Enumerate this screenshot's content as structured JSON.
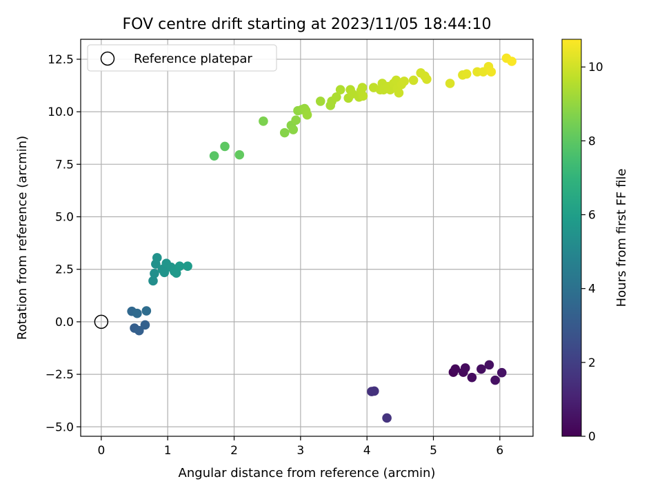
{
  "chart_data": {
    "type": "scatter",
    "title": "FOV centre drift starting at 2023/11/05 18:44:10",
    "xlabel": "Angular distance from reference (arcmin)",
    "ylabel": "Rotation from reference (arcmin)",
    "xlim": [
      -0.31,
      6.5
    ],
    "ylim": [
      -5.45,
      13.45
    ],
    "xticks": [
      0,
      1,
      2,
      3,
      4,
      5,
      6
    ],
    "xtick_labels": [
      "0",
      "1",
      "2",
      "3",
      "4",
      "5",
      "6"
    ],
    "yticks": [
      -5.0,
      -2.5,
      0.0,
      2.5,
      5.0,
      7.5,
      10.0,
      12.5
    ],
    "ytick_labels": [
      "−5.0",
      "−2.5",
      "0.0",
      "2.5",
      "5.0",
      "7.5",
      "10.0",
      "12.5"
    ],
    "grid": true,
    "legend": {
      "position": "upper-left",
      "entries": [
        {
          "label": "Reference platepar",
          "marker": "open-circle"
        }
      ]
    },
    "reference": {
      "x": 0,
      "y": 0
    },
    "colorbar": {
      "label": "Hours from first FF file",
      "min": 0,
      "max": 10.75,
      "ticks": [
        0,
        2,
        4,
        6,
        8,
        10
      ],
      "tick_labels": [
        "0",
        "2",
        "4",
        "6",
        "8",
        "10"
      ],
      "colormap": "viridis"
    },
    "points": [
      {
        "x": 5.3,
        "y": -2.4,
        "h": 0.1
      },
      {
        "x": 5.33,
        "y": -2.25,
        "h": 0.2
      },
      {
        "x": 5.45,
        "y": -2.4,
        "h": 0.25
      },
      {
        "x": 5.48,
        "y": -2.2,
        "h": 0.3
      },
      {
        "x": 5.58,
        "y": -2.65,
        "h": 0.35
      },
      {
        "x": 5.72,
        "y": -2.25,
        "h": 0.4
      },
      {
        "x": 5.84,
        "y": -2.05,
        "h": 0.45
      },
      {
        "x": 5.93,
        "y": -2.78,
        "h": 0.5
      },
      {
        "x": 6.03,
        "y": -2.42,
        "h": 0.55
      },
      {
        "x": 4.07,
        "y": -3.32,
        "h": 1.5
      },
      {
        "x": 4.11,
        "y": -3.3,
        "h": 1.55
      },
      {
        "x": 4.3,
        "y": -4.58,
        "h": 1.6
      },
      {
        "x": 0.5,
        "y": -0.3,
        "h": 3.2
      },
      {
        "x": 0.57,
        "y": -0.42,
        "h": 3.25
      },
      {
        "x": 0.66,
        "y": -0.15,
        "h": 3.3
      },
      {
        "x": 0.46,
        "y": 0.5,
        "h": 3.6
      },
      {
        "x": 0.54,
        "y": 0.4,
        "h": 3.7
      },
      {
        "x": 0.68,
        "y": 0.52,
        "h": 3.8
      },
      {
        "x": 0.78,
        "y": 1.95,
        "h": 5.3
      },
      {
        "x": 0.8,
        "y": 2.3,
        "h": 5.35
      },
      {
        "x": 0.82,
        "y": 2.75,
        "h": 5.4
      },
      {
        "x": 0.84,
        "y": 3.05,
        "h": 5.45
      },
      {
        "x": 0.92,
        "y": 2.5,
        "h": 5.5
      },
      {
        "x": 0.95,
        "y": 2.35,
        "h": 5.55
      },
      {
        "x": 0.98,
        "y": 2.78,
        "h": 5.6
      },
      {
        "x": 1.05,
        "y": 2.6,
        "h": 5.65
      },
      {
        "x": 1.1,
        "y": 2.4,
        "h": 5.7
      },
      {
        "x": 1.13,
        "y": 2.32,
        "h": 5.75
      },
      {
        "x": 1.18,
        "y": 2.65,
        "h": 5.8
      },
      {
        "x": 1.3,
        "y": 2.65,
        "h": 5.85
      },
      {
        "x": 1.7,
        "y": 7.9,
        "h": 7.9
      },
      {
        "x": 1.86,
        "y": 8.35,
        "h": 8.0
      },
      {
        "x": 2.08,
        "y": 7.95,
        "h": 8.1
      },
      {
        "x": 2.44,
        "y": 9.55,
        "h": 8.6
      },
      {
        "x": 2.76,
        "y": 9.0,
        "h": 8.75
      },
      {
        "x": 2.86,
        "y": 9.35,
        "h": 8.8
      },
      {
        "x": 2.89,
        "y": 9.15,
        "h": 8.85
      },
      {
        "x": 2.93,
        "y": 9.6,
        "h": 8.9
      },
      {
        "x": 2.96,
        "y": 10.05,
        "h": 8.95
      },
      {
        "x": 3.02,
        "y": 10.1,
        "h": 9.0
      },
      {
        "x": 3.06,
        "y": 10.15,
        "h": 9.05
      },
      {
        "x": 3.08,
        "y": 10.05,
        "h": 9.1
      },
      {
        "x": 3.1,
        "y": 9.85,
        "h": 9.15
      },
      {
        "x": 3.3,
        "y": 10.5,
        "h": 9.25
      },
      {
        "x": 3.45,
        "y": 10.3,
        "h": 9.3
      },
      {
        "x": 3.47,
        "y": 10.5,
        "h": 9.35
      },
      {
        "x": 3.54,
        "y": 10.7,
        "h": 9.4
      },
      {
        "x": 3.6,
        "y": 11.05,
        "h": 9.45
      },
      {
        "x": 3.72,
        "y": 10.65,
        "h": 9.5
      },
      {
        "x": 3.75,
        "y": 11.05,
        "h": 9.55
      },
      {
        "x": 3.78,
        "y": 10.85,
        "h": 9.6
      },
      {
        "x": 3.88,
        "y": 10.7,
        "h": 9.62
      },
      {
        "x": 3.91,
        "y": 11.0,
        "h": 9.65
      },
      {
        "x": 3.93,
        "y": 11.15,
        "h": 9.68
      },
      {
        "x": 3.94,
        "y": 10.75,
        "h": 9.7
      },
      {
        "x": 4.1,
        "y": 11.15,
        "h": 9.75
      },
      {
        "x": 4.2,
        "y": 11.05,
        "h": 9.78
      },
      {
        "x": 4.23,
        "y": 11.35,
        "h": 9.8
      },
      {
        "x": 4.25,
        "y": 11.05,
        "h": 9.82
      },
      {
        "x": 4.32,
        "y": 11.2,
        "h": 9.84
      },
      {
        "x": 4.35,
        "y": 11.05,
        "h": 9.86
      },
      {
        "x": 4.4,
        "y": 11.35,
        "h": 9.88
      },
      {
        "x": 4.44,
        "y": 11.5,
        "h": 9.9
      },
      {
        "x": 4.46,
        "y": 11.1,
        "h": 9.92
      },
      {
        "x": 4.48,
        "y": 10.9,
        "h": 9.94
      },
      {
        "x": 4.52,
        "y": 11.3,
        "h": 9.96
      },
      {
        "x": 4.56,
        "y": 11.45,
        "h": 9.98
      },
      {
        "x": 4.7,
        "y": 11.5,
        "h": 10.0
      },
      {
        "x": 4.81,
        "y": 11.85,
        "h": 10.05
      },
      {
        "x": 4.87,
        "y": 11.7,
        "h": 10.08
      },
      {
        "x": 4.9,
        "y": 11.55,
        "h": 10.1
      },
      {
        "x": 5.25,
        "y": 11.35,
        "h": 10.2
      },
      {
        "x": 5.44,
        "y": 11.75,
        "h": 10.3
      },
      {
        "x": 5.5,
        "y": 11.8,
        "h": 10.35
      },
      {
        "x": 5.66,
        "y": 11.9,
        "h": 10.4
      },
      {
        "x": 5.75,
        "y": 11.9,
        "h": 10.45
      },
      {
        "x": 5.83,
        "y": 12.15,
        "h": 10.5
      },
      {
        "x": 5.87,
        "y": 11.9,
        "h": 10.55
      },
      {
        "x": 6.1,
        "y": 12.55,
        "h": 10.65
      },
      {
        "x": 6.18,
        "y": 12.4,
        "h": 10.7
      }
    ]
  }
}
